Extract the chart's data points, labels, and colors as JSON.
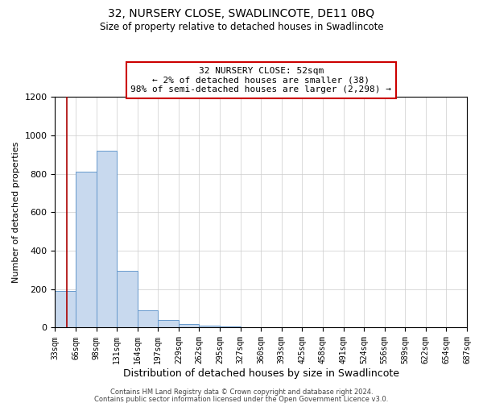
{
  "title": "32, NURSERY CLOSE, SWADLINCOTE, DE11 0BQ",
  "subtitle": "Size of property relative to detached houses in Swadlincote",
  "xlabel": "Distribution of detached houses by size in Swadlincote",
  "ylabel": "Number of detached properties",
  "bin_edges": [
    33,
    66,
    99,
    132,
    165,
    198,
    231,
    264,
    297,
    330,
    363,
    396,
    429,
    462,
    495,
    528,
    561,
    594,
    627,
    660,
    693
  ],
  "bin_labels": [
    "33sqm",
    "66sqm",
    "98sqm",
    "131sqm",
    "164sqm",
    "197sqm",
    "229sqm",
    "262sqm",
    "295sqm",
    "327sqm",
    "360sqm",
    "393sqm",
    "425sqm",
    "458sqm",
    "491sqm",
    "524sqm",
    "556sqm",
    "589sqm",
    "622sqm",
    "654sqm",
    "687sqm"
  ],
  "bar_heights": [
    190,
    810,
    920,
    295,
    88,
    38,
    17,
    12,
    8,
    0,
    0,
    0,
    0,
    0,
    0,
    0,
    0,
    0,
    0,
    0
  ],
  "bar_color": "#c8d9ee",
  "bar_edge_color": "#6699cc",
  "property_line_x": 52,
  "property_line_color": "#aa0000",
  "ylim": [
    0,
    1200
  ],
  "yticks": [
    0,
    200,
    400,
    600,
    800,
    1000,
    1200
  ],
  "annotation_line1": "32 NURSERY CLOSE: 52sqm",
  "annotation_line2": "← 2% of detached houses are smaller (38)",
  "annotation_line3": "98% of semi-detached houses are larger (2,298) →",
  "footer_line1": "Contains HM Land Registry data © Crown copyright and database right 2024.",
  "footer_line2": "Contains public sector information licensed under the Open Government Licence v3.0.",
  "background_color": "#ffffff",
  "grid_color": "#cccccc"
}
